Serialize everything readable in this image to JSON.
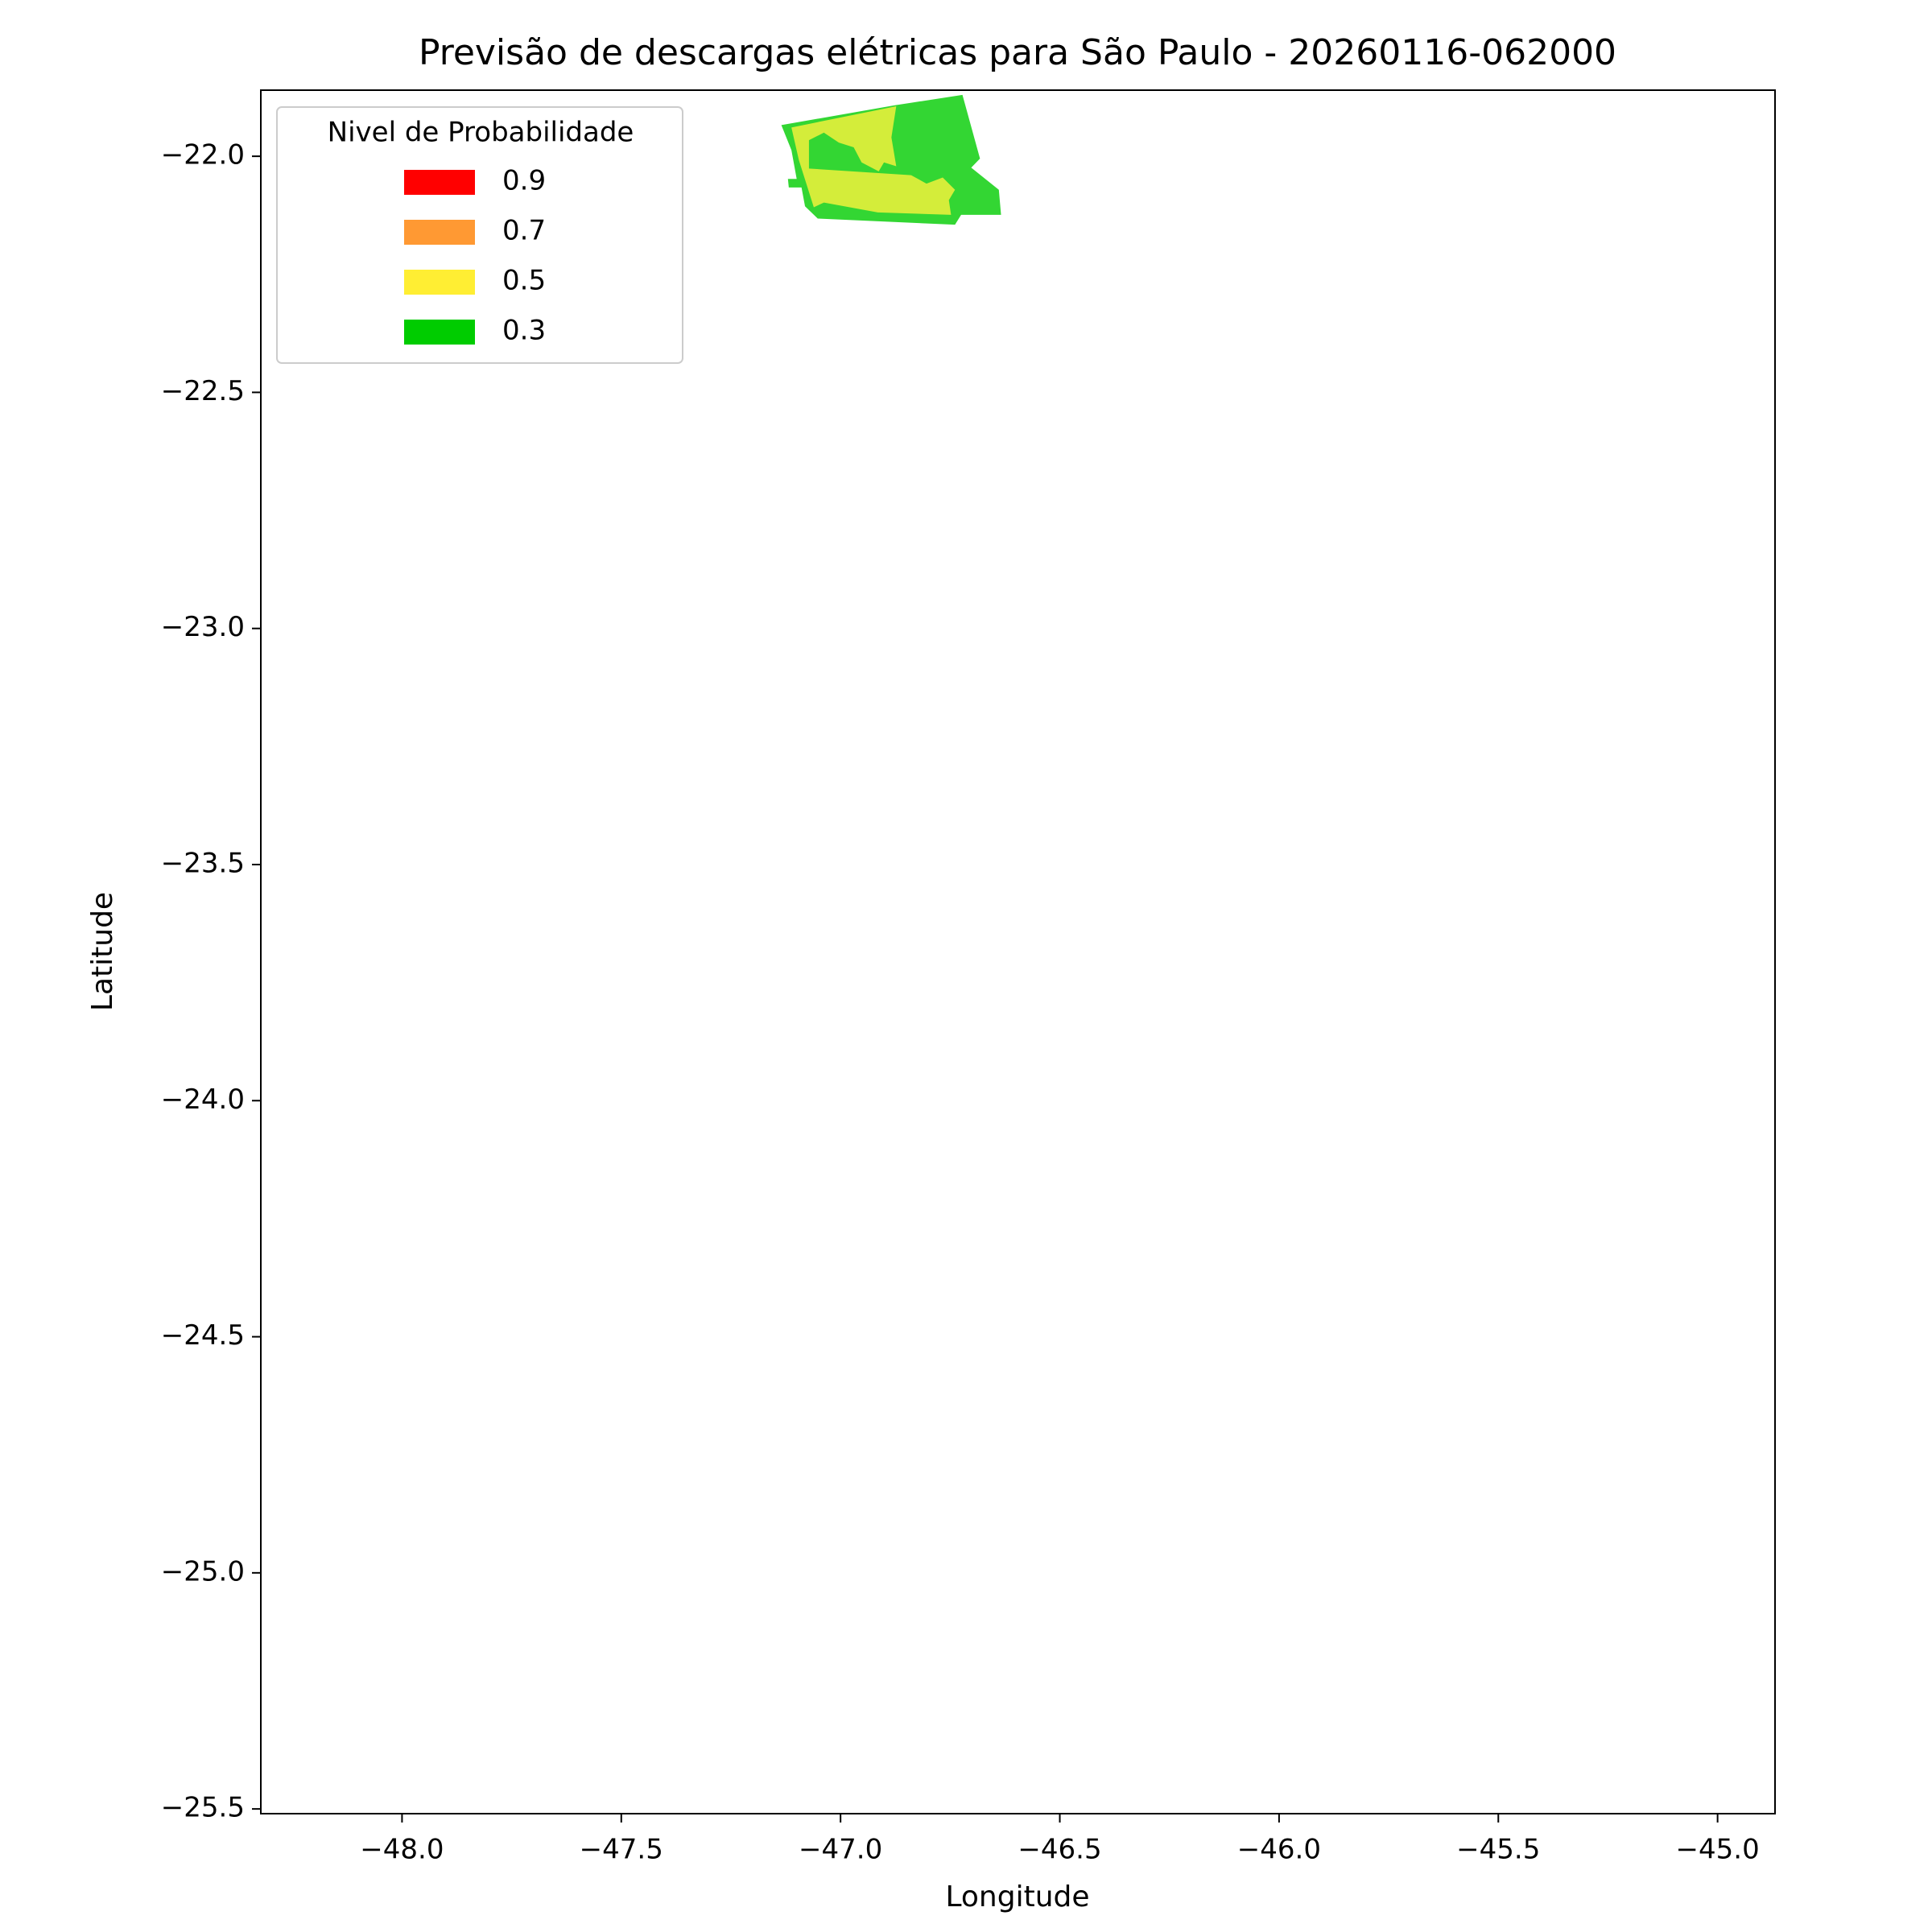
{
  "chart_data": {
    "type": "map",
    "title": "Previsão de descargas elétricas para São Paulo - 20260116-062000",
    "x_label": "Longitude",
    "y_label": "Latitude",
    "xlim": [
      -48.322,
      -44.869
    ],
    "ylim": [
      -25.51,
      -21.86
    ],
    "xticks": [
      {
        "value": -48,
        "label": "−48.0"
      },
      {
        "value": -47.5,
        "label": "−47.5"
      },
      {
        "value": -47,
        "label": "−47.0"
      },
      {
        "value": -46.5,
        "label": "−46.5"
      },
      {
        "value": -46,
        "label": "−46.0"
      },
      {
        "value": -45.5,
        "label": "−45.5"
      },
      {
        "value": -45,
        "label": "−45.0"
      }
    ],
    "yticks": [
      {
        "value": -22,
        "label": "−22.0"
      },
      {
        "value": -22.5,
        "label": "−22.5"
      },
      {
        "value": -23,
        "label": "−23.0"
      },
      {
        "value": -23.5,
        "label": "−23.5"
      },
      {
        "value": -24,
        "label": "−24.0"
      },
      {
        "value": -24.5,
        "label": "−24.5"
      },
      {
        "value": -25,
        "label": "−25.0"
      },
      {
        "value": -25.5,
        "label": "−25.5"
      }
    ],
    "legend": {
      "title": "Nivel de Probabilidade",
      "position": "upper left",
      "items": [
        {
          "name": "0.9",
          "color": "#ff0000"
        },
        {
          "name": "0.7",
          "color": "#ff9933"
        },
        {
          "name": "0.5",
          "color": "#ffee33"
        },
        {
          "name": "0.3",
          "color": "#00cc00"
        }
      ]
    },
    "regions": [
      {
        "level": "0.3",
        "color": "#33d633",
        "lon": [
          -47.135,
          -46.876,
          -46.722,
          -46.682,
          -46.702,
          -46.639,
          -46.634,
          -46.725,
          -46.739,
          -47.052,
          -47.081,
          -47.089,
          -47.118,
          -47.12,
          -47.1,
          -47.112
        ],
        "lat": [
          -21.934,
          -21.892,
          -21.87,
          -22.005,
          -22.024,
          -22.071,
          -22.124,
          -22.124,
          -22.145,
          -22.132,
          -22.106,
          -22.066,
          -22.066,
          -22.048,
          -22.048,
          -21.987
        ]
      },
      {
        "level": "0.5",
        "color": "#d4ed3a",
        "lon": [
          -47.112,
          -46.873,
          -46.884,
          -46.873,
          -46.901,
          -46.913,
          -46.952,
          -46.97,
          -47.004,
          -47.038,
          -47.072,
          -47.072,
          -46.839,
          -46.804,
          -46.767,
          -46.739,
          -46.753,
          -46.748,
          -46.915,
          -47.038,
          -47.061,
          -47.095
        ],
        "lat": [
          -21.939,
          -21.894,
          -21.96,
          -22.021,
          -22.013,
          -22.032,
          -22.013,
          -21.981,
          -21.971,
          -21.95,
          -21.966,
          -22.026,
          -22.04,
          -22.058,
          -22.045,
          -22.071,
          -22.093,
          -22.124,
          -22.119,
          -22.098,
          -22.108,
          -22.008
        ]
      }
    ]
  }
}
